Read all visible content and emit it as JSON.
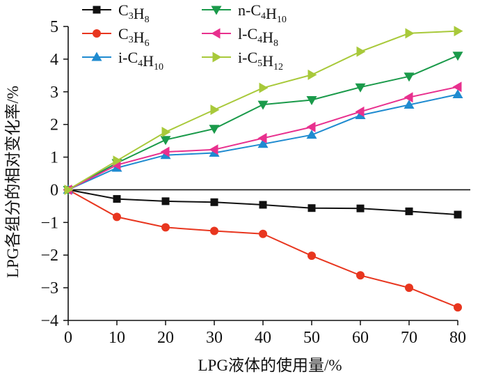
{
  "chart_data": {
    "type": "line",
    "xlabel": "LPG液体的使用量/%",
    "ylabel": "LPG各组分的相对变化率/%",
    "xlim": [
      0,
      80
    ],
    "ylim": [
      -4,
      5
    ],
    "x_ticks": [
      "0",
      "10",
      "20",
      "30",
      "40",
      "50",
      "60",
      "70",
      "80"
    ],
    "y_ticks": [
      "5",
      "4",
      "3",
      "2",
      "1",
      "0",
      "−1",
      "−2",
      "−3",
      "−4"
    ],
    "x": [
      0,
      10,
      20,
      30,
      40,
      50,
      60,
      70,
      80
    ],
    "zero_line": true,
    "grid": false,
    "legend_position": "top-left",
    "series": [
      {
        "name": "C3H8",
        "label_parts": [
          {
            "t": "C"
          },
          {
            "t": "3",
            "sub": true
          },
          {
            "t": "H"
          },
          {
            "t": "8",
            "sub": true
          }
        ],
        "color": "#111111",
        "marker": "square",
        "values": [
          0,
          -0.28,
          -0.35,
          -0.38,
          -0.46,
          -0.56,
          -0.57,
          -0.66,
          -0.76
        ]
      },
      {
        "name": "C3H6",
        "label_parts": [
          {
            "t": "C"
          },
          {
            "t": "3",
            "sub": true
          },
          {
            "t": "H"
          },
          {
            "t": "6",
            "sub": true
          }
        ],
        "color": "#e8361f",
        "marker": "circle",
        "values": [
          0,
          -0.83,
          -1.15,
          -1.26,
          -1.35,
          -2.02,
          -2.62,
          -3.0,
          -3.6
        ]
      },
      {
        "name": "i-C4H10",
        "label_parts": [
          {
            "t": "i-C"
          },
          {
            "t": "4",
            "sub": true
          },
          {
            "t": "H"
          },
          {
            "t": "10",
            "sub": true
          }
        ],
        "color": "#1f8bd0",
        "marker": "triangle-up",
        "values": [
          0,
          0.67,
          1.06,
          1.13,
          1.4,
          1.68,
          2.28,
          2.6,
          2.92
        ]
      },
      {
        "name": "n-C4H10",
        "label_parts": [
          {
            "t": "n-C"
          },
          {
            "t": "4",
            "sub": true
          },
          {
            "t": "H"
          },
          {
            "t": "10",
            "sub": true
          }
        ],
        "color": "#1a9a4a",
        "marker": "triangle-down",
        "values": [
          0,
          0.82,
          1.53,
          1.87,
          2.61,
          2.75,
          3.14,
          3.47,
          4.11
        ]
      },
      {
        "name": "l-C4H8",
        "label_parts": [
          {
            "t": "l-C"
          },
          {
            "t": "4",
            "sub": true
          },
          {
            "t": "H"
          },
          {
            "t": "8",
            "sub": true
          }
        ],
        "color": "#e8308e",
        "marker": "triangle-left",
        "values": [
          0,
          0.76,
          1.16,
          1.23,
          1.58,
          1.92,
          2.39,
          2.83,
          3.15
        ]
      },
      {
        "name": "i-C5H12",
        "label_parts": [
          {
            "t": "i-C"
          },
          {
            "t": "5",
            "sub": true
          },
          {
            "t": "H"
          },
          {
            "t": "12",
            "sub": true
          }
        ],
        "color": "#a8c93a",
        "marker": "triangle-right",
        "values": [
          0,
          0.89,
          1.77,
          2.45,
          3.12,
          3.52,
          4.23,
          4.79,
          4.86
        ]
      }
    ]
  }
}
